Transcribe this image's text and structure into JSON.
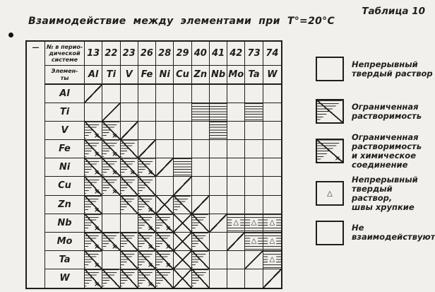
{
  "page": {
    "table_caption": "Таблица 10",
    "title": "Взаимодействие  между  элементами  при  Т°=20°С"
  },
  "table": {
    "corner_dash": "—",
    "header_period_label": "№ в перио-\nдической\nсистеме",
    "header_elements_label": "Элемен-\nты",
    "numbers": [
      "13",
      "22",
      "23",
      "26",
      "28",
      "29",
      "40",
      "41",
      "42",
      "73",
      "74"
    ],
    "elements": [
      "Al",
      "Ti",
      "V",
      "Fe",
      "Ni",
      "Cu",
      "Zn",
      "Nb",
      "Mo",
      "Ta",
      "W"
    ],
    "row_labels": [
      "Al",
      "Ti",
      "V",
      "Fe",
      "Ni",
      "Cu",
      "Zn",
      "Nb",
      "Mo",
      "Ta",
      "W"
    ],
    "marks": {
      "compound_mark": "×",
      "brittle_mark": "△"
    },
    "matrix": [
      [
        "diag",
        "",
        "",
        "",
        "",
        "",
        "",
        "",
        "",
        "",
        ""
      ],
      [
        "",
        "diag",
        "",
        "",
        "",
        "",
        "cont",
        "cont",
        "",
        "cont",
        ""
      ],
      [
        "limx",
        "limx",
        "diag",
        "",
        "",
        "",
        "",
        "cont",
        "",
        "",
        ""
      ],
      [
        "limx",
        "limx",
        "lim",
        "diag",
        "",
        "",
        "",
        "",
        "",
        "",
        ""
      ],
      [
        "limx",
        "limx",
        "limx",
        "limx",
        "diag",
        "cont",
        "",
        "",
        "",
        "",
        ""
      ],
      [
        "limx",
        "limx",
        "lim",
        "lim",
        "",
        "diag",
        "",
        "",
        "",
        "",
        ""
      ],
      [
        "limx",
        "",
        "lim",
        "limx",
        "none",
        "lim",
        "diag",
        "",
        "",
        "",
        ""
      ],
      [
        "limx",
        "",
        "",
        "limx",
        "limx",
        "none",
        "lim",
        "diag",
        "contbr",
        "contbr",
        "contbr"
      ],
      [
        "limx",
        "limx",
        "lim",
        "limx",
        "limx",
        "none",
        "lim",
        "",
        "diag",
        "contbr",
        "contbr"
      ],
      [
        "limx",
        "",
        "lim",
        "limx",
        "limx",
        "none",
        "lim",
        "",
        "",
        "diag",
        "contbr"
      ],
      [
        "limx",
        "lim",
        "lim",
        "limx",
        "lim",
        "none",
        "lim",
        "",
        "",
        "",
        "diag"
      ]
    ]
  },
  "legend": {
    "items": [
      {
        "pattern": "cont",
        "label": "Непрерывный\nтвердый раствор"
      },
      {
        "pattern": "lim",
        "label": "Ограниченная\nрастворимость"
      },
      {
        "pattern": "limx",
        "label": "Ограниченная\nрастворимость\nи химическое\nсоединение"
      },
      {
        "pattern": "contbr",
        "label": "Непрерывный\nтвердый раствор,\nшвы хрупкие"
      },
      {
        "pattern": "none",
        "label": "Не\nвзаимодействуют"
      }
    ]
  },
  "colors": {
    "ink": "#1f1e1c",
    "paper": "#f1f0ec"
  }
}
